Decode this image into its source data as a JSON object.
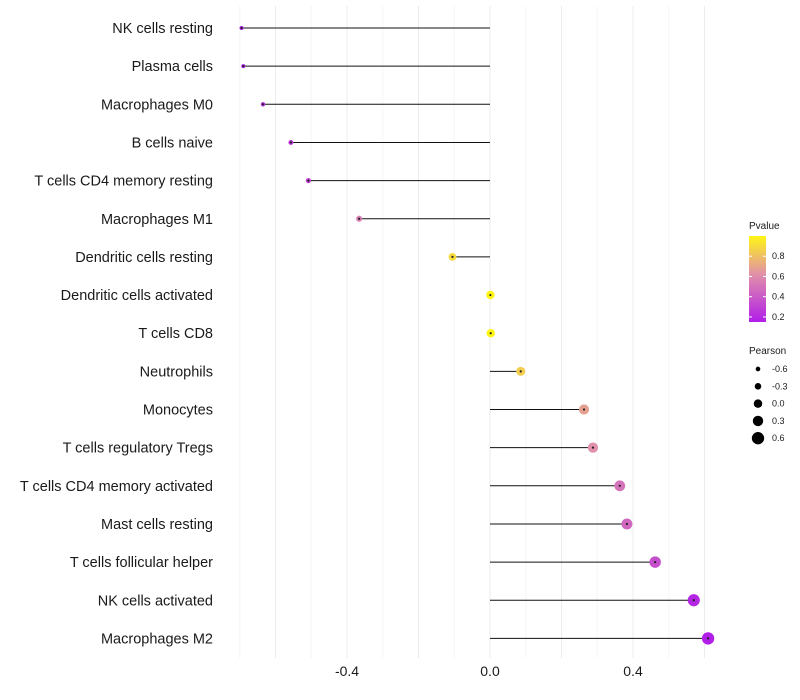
{
  "chart_data": {
    "type": "lollipop",
    "categories": [
      "NK cells resting",
      "Plasma cells",
      "Macrophages M0",
      "B cells naive",
      "T cells CD4 memory resting",
      "Macrophages M1",
      "Dendritic cells resting",
      "Dendritic cells activated",
      "T cells CD8",
      "Neutrophils",
      "Monocytes",
      "T cells regulatory  Tregs",
      "T cells CD4 memory activated",
      "Mast cells resting",
      "T cells follicular helper",
      "NK cells activated",
      "Macrophages M2"
    ],
    "pearson": [
      -0.695,
      -0.69,
      -0.635,
      -0.557,
      -0.508,
      -0.366,
      -0.105,
      0.001,
      0.002,
      0.086,
      0.263,
      0.288,
      0.363,
      0.383,
      0.462,
      0.57,
      0.61
    ],
    "pvalue": [
      0.15,
      0.15,
      0.2,
      0.25,
      0.3,
      0.55,
      0.9,
      1.0,
      1.0,
      0.85,
      0.68,
      0.62,
      0.5,
      0.45,
      0.35,
      0.18,
      0.1
    ],
    "x_ticks": [
      "-0.4",
      "0.0",
      "0.4"
    ],
    "x_tick_values": [
      -0.4,
      0.0,
      0.4
    ],
    "xlim": [
      -0.75,
      0.68
    ],
    "xlabel": "",
    "ylabel": "",
    "grid": true,
    "legend_pvalue": {
      "title": "Pvalue",
      "ticks": [
        "0.8",
        "0.6",
        "0.4",
        "0.2"
      ],
      "tick_values": [
        0.8,
        0.6,
        0.4,
        0.2
      ],
      "range": [
        0.15,
        1.0
      ],
      "color_low": "#b11ee8",
      "color_mid": "#e08faa",
      "color_high": "#fff516"
    },
    "legend_pearson": {
      "title": "Pearson",
      "labels": [
        "-0.6",
        "-0.3",
        "0.0",
        "0.3",
        "0.6"
      ],
      "values": [
        -0.6,
        -0.3,
        0.0,
        0.3,
        0.6
      ]
    }
  }
}
